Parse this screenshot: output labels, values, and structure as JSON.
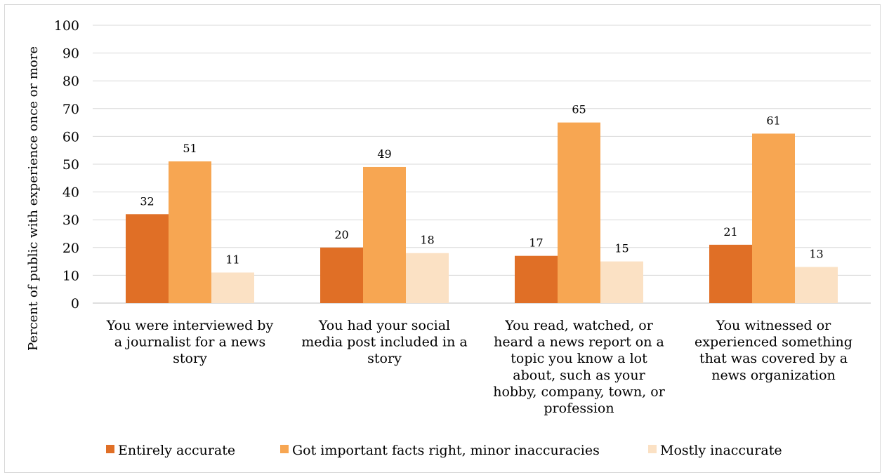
{
  "chart_data": {
    "type": "bar",
    "title": "",
    "xlabel": "",
    "ylabel": "Percent of public with experience once or more",
    "ylim": [
      0,
      100
    ],
    "yticks": [
      0,
      10,
      20,
      30,
      40,
      50,
      60,
      70,
      80,
      90,
      100
    ],
    "grid": true,
    "legend_position": "bottom",
    "categories": [
      [
        "You were interviewed by",
        "a journalist for a news",
        "story"
      ],
      [
        "You had your social",
        "media post included in a",
        "story"
      ],
      [
        "You read, watched, or",
        "heard a news report on a",
        "topic you know a lot",
        "about, such as your",
        "hobby, company, town, or",
        "profession"
      ],
      [
        "You witnessed or",
        "experienced something",
        "that was covered by a",
        "news organization"
      ]
    ],
    "series": [
      {
        "name": "Entirely accurate",
        "color": "#e06f26",
        "values": [
          32,
          20,
          17,
          21
        ]
      },
      {
        "name": "Got important facts right, minor inaccuracies",
        "color": "#f7a652",
        "values": [
          51,
          49,
          65,
          61
        ]
      },
      {
        "name": "Mostly inaccurate",
        "color": "#fbe1c4",
        "values": [
          11,
          18,
          15,
          13
        ]
      }
    ]
  }
}
